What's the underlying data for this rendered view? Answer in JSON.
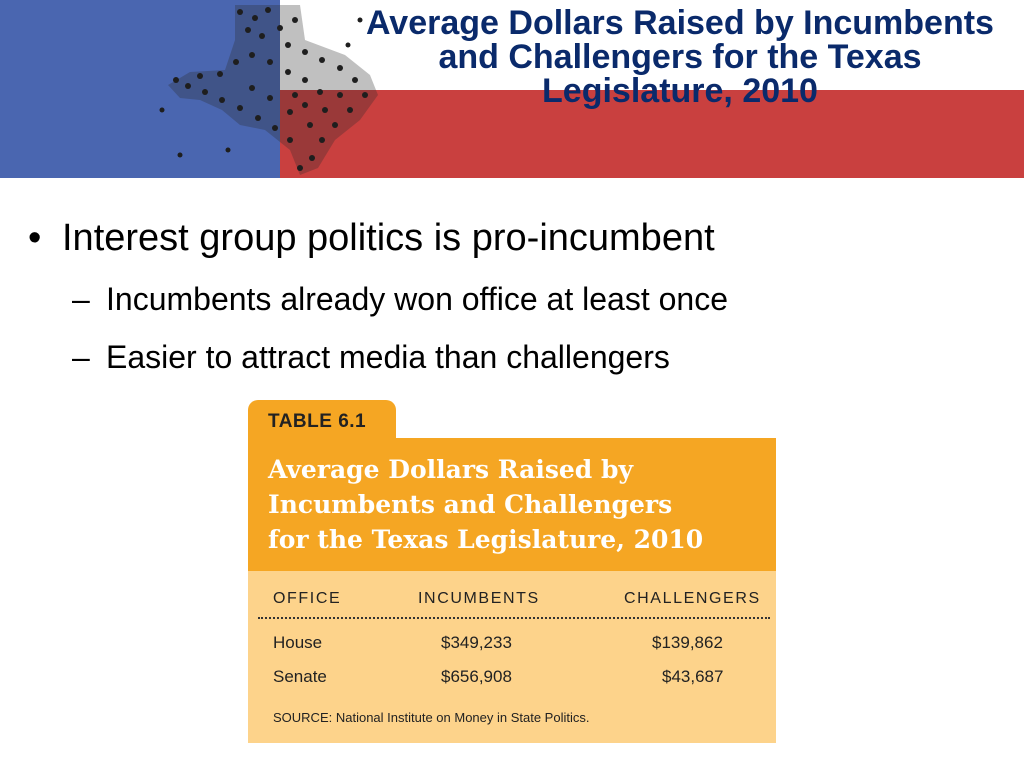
{
  "slide": {
    "title": "Average Dollars Raised by Incumbents and Challengers for the Texas Legislature, 2010",
    "bullets": {
      "main": "Interest group politics is pro-incumbent",
      "subs": [
        "Incumbents already won office at least once",
        "Easier to attract media than challengers"
      ],
      "bullet_glyph": "•",
      "dash_glyph": "–"
    }
  },
  "banner": {
    "left_color": "#4a66b0",
    "right_color": "#c9403f",
    "white_color": "#ffffff",
    "decor_icon": "texas-map-crowd-graphic"
  },
  "table": {
    "tab_label": "TABLE 6.1",
    "title_lines": [
      "Average Dollars Raised by",
      "Incumbents and Challengers",
      "for the Texas Legislature, 2010"
    ],
    "headers": [
      "OFFICE",
      "INCUMBENTS",
      "CHALLENGERS"
    ],
    "rows": [
      {
        "office": "House",
        "incumbents": "$349,233",
        "challengers": "$139,862"
      },
      {
        "office": "Senate",
        "incumbents": "$656,908",
        "challengers": "$43,687"
      }
    ],
    "source": "SOURCE: National Institute on Money in State Politics.",
    "accent_color": "#f5a623",
    "body_color": "#fdd38b"
  }
}
